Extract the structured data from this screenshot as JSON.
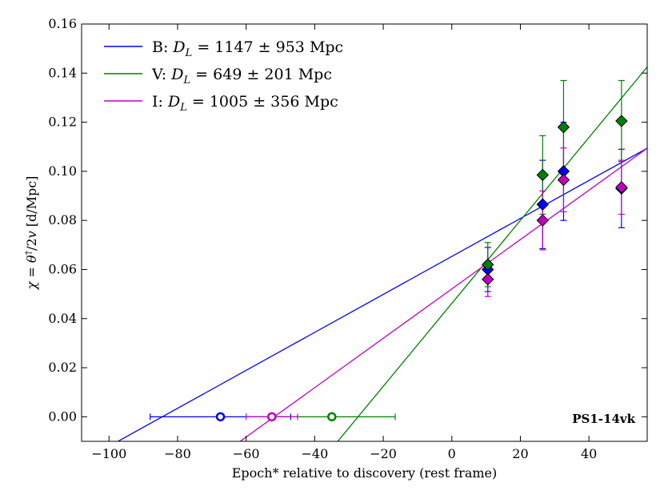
{
  "chart_data": {
    "type": "scatter",
    "title": "",
    "xlabel": "Epoch* relative to discovery (rest frame)",
    "ylabel": "χ = θ†/2v [d/Mpc]",
    "xlim": [
      -108,
      57
    ],
    "ylim": [
      -0.01,
      0.16
    ],
    "xticks": [
      -100,
      -80,
      -60,
      -40,
      -20,
      0,
      20,
      40
    ],
    "yticks": [
      0.0,
      0.02,
      0.04,
      0.06,
      0.08,
      0.1,
      0.12,
      0.14,
      0.16
    ],
    "xtick_labels": [
      "−100",
      "−80",
      "−60",
      "−40",
      "−20",
      "0",
      "20",
      "40"
    ],
    "ytick_labels": [
      "0.00",
      "0.02",
      "0.04",
      "0.06",
      "0.08",
      "0.10",
      "0.12",
      "0.14",
      "0.16"
    ],
    "annotation": "PS1-14vk",
    "legend_position": "top-left",
    "series": [
      {
        "name": "B",
        "label_prefix": "B: ",
        "label_value": " = 1147 ± 953 Mpc",
        "color": "#0000ff",
        "marker_color": "#0000ff",
        "x": [
          10.5,
          26.5,
          32.6,
          49.5
        ],
        "y": [
          0.06,
          0.0865,
          0.1,
          0.093
        ],
        "yerr": [
          0.009,
          0.018,
          0.02,
          0.016
        ],
        "x0": -67.5,
        "x0_err": 20.5,
        "fit_line": [
          [
            -108,
            -0.0182
          ],
          [
            57,
            0.1094
          ]
        ]
      },
      {
        "name": "V",
        "label_prefix": "V: ",
        "label_value": " = 649 ± 201 Mpc",
        "color": "#008000",
        "marker_color": "#008000",
        "x": [
          10.5,
          26.5,
          32.6,
          49.5
        ],
        "y": [
          0.062,
          0.0985,
          0.118,
          0.1205
        ],
        "yerr": [
          0.009,
          0.016,
          0.019,
          0.0165
        ],
        "x0": -35.0,
        "x0_err": 18.5,
        "fit_line": [
          [
            -38.0,
            -0.018
          ],
          [
            57,
            0.1425
          ]
        ]
      },
      {
        "name": "I",
        "label_prefix": "I: ",
        "label_value": " = 1005 ± 356 Mpc",
        "color": "#bf00bf",
        "marker_color": "#c000c0",
        "x": [
          10.5,
          26.5,
          32.6,
          49.5
        ],
        "y": [
          0.056,
          0.08,
          0.0965,
          0.0935
        ],
        "yerr": [
          0.007,
          0.012,
          0.013,
          0.011
        ],
        "x0": -52.5,
        "x0_err": 7.5,
        "fit_line": [
          [
            -70.0,
            -0.0183
          ],
          [
            57,
            0.1094
          ]
        ]
      }
    ]
  }
}
